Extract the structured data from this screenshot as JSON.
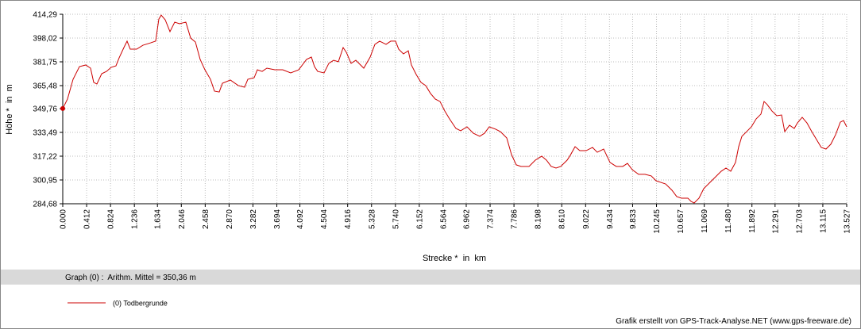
{
  "chart_data": {
    "type": "line",
    "y_label": "Höhe *  in  m",
    "x_label": "Strecke *  in  km",
    "info": "Graph (0) :  Arithm. Mittel = 350,36 m",
    "credit": "Grafik erstellt von GPS-Track-Analyse.NET (www.gps-freeware.de)",
    "grid": true,
    "xlim": [
      0,
      13.527
    ],
    "ylim": [
      284.68,
      414.29
    ],
    "yticks": [
      {
        "value": 284.68,
        "label": "284,68"
      },
      {
        "value": 300.95,
        "label": "300,95"
      },
      {
        "value": 317.22,
        "label": "317,22"
      },
      {
        "value": 333.49,
        "label": "333,49"
      },
      {
        "value": 349.76,
        "label": "349,76"
      },
      {
        "value": 365.48,
        "label": "365,48"
      },
      {
        "value": 381.75,
        "label": "381,75"
      },
      {
        "value": 398.02,
        "label": "398,02"
      },
      {
        "value": 414.29,
        "label": "414,29"
      }
    ],
    "xticks": [
      {
        "value": 0,
        "label": "0.000"
      },
      0.412,
      0.824,
      1.236,
      1.634,
      2.046,
      2.458,
      {
        "value": 2.87,
        "label": "2.870"
      },
      3.282,
      3.694,
      4.092,
      4.504,
      4.916,
      5.328,
      {
        "value": 5.74,
        "label": "5.740"
      },
      6.152,
      6.564,
      6.962,
      7.374,
      7.786,
      8.198,
      {
        "value": 8.61,
        "label": "8.610"
      },
      9.022,
      9.434,
      9.833,
      10.245,
      10.657,
      11.069,
      {
        "value": 11.48,
        "label": "11.480"
      },
      11.892,
      12.291,
      12.703,
      13.115,
      13.527
    ],
    "x": [
      0,
      0.082,
      0.178,
      0.288,
      0.397,
      0.48,
      0.534,
      0.589,
      0.672,
      0.754,
      0.836,
      0.918,
      0.973,
      1.055,
      1.11,
      1.165,
      1.275,
      1.384,
      1.521,
      1.603,
      1.658,
      1.699,
      1.768,
      1.85,
      1.932,
      2.015,
      2.124,
      2.207,
      2.289,
      2.371,
      2.453,
      2.549,
      2.618,
      2.7,
      2.755,
      2.892,
      3.029,
      3.138,
      3.193,
      3.303,
      3.358,
      3.44,
      3.522,
      3.659,
      3.796,
      3.933,
      4.07,
      4.207,
      4.29,
      4.344,
      4.399,
      4.509,
      4.591,
      4.673,
      4.756,
      4.838,
      4.893,
      4.975,
      5.057,
      5.194,
      5.304,
      5.386,
      5.468,
      5.578,
      5.66,
      5.742,
      5.797,
      5.879,
      5.962,
      6.016,
      6.099,
      6.181,
      6.263,
      6.346,
      6.428,
      6.51,
      6.592,
      6.674,
      6.784,
      6.866,
      6.976,
      7.085,
      7.195,
      7.277,
      7.359,
      7.469,
      7.551,
      7.661,
      7.743,
      7.825,
      7.908,
      8.045,
      8.154,
      8.264,
      8.346,
      8.428,
      8.511,
      8.593,
      8.703,
      8.757,
      8.84,
      8.922,
      9.031,
      9.141,
      9.223,
      9.333,
      9.443,
      9.552,
      9.662,
      9.744,
      9.826,
      9.936,
      10.046,
      10.155,
      10.238,
      10.32,
      10.402,
      10.512,
      10.594,
      10.676,
      10.786,
      10.841,
      10.895,
      10.978,
      11.06,
      11.169,
      11.252,
      11.361,
      11.444,
      11.526,
      11.608,
      11.663,
      11.718,
      11.8,
      11.882,
      11.964,
      12.047,
      12.101,
      12.156,
      12.238,
      12.321,
      12.403,
      12.458,
      12.54,
      12.622,
      12.677,
      12.759,
      12.841,
      12.924,
      13.006,
      13.088,
      13.17,
      13.253,
      13.335,
      13.417,
      13.472,
      13.527
    ],
    "series": [
      {
        "name": "(0) Todbergrunde",
        "color": "#cc0000",
        "values": [
          349.8,
          356.3,
          369.8,
          378.5,
          379.6,
          377.4,
          367.7,
          366.6,
          373.6,
          375.2,
          378.0,
          379.0,
          384.5,
          391.5,
          395.9,
          390.4,
          390.4,
          393.1,
          394.8,
          395.9,
          411.0,
          413.7,
          410.5,
          402.4,
          408.9,
          407.8,
          408.9,
          398.0,
          395.3,
          383.4,
          376.3,
          369.8,
          361.7,
          361.1,
          367.1,
          369.3,
          365.5,
          364.4,
          369.8,
          370.9,
          376.3,
          375.2,
          377.4,
          376.3,
          376.3,
          374.2,
          376.3,
          383.4,
          385.0,
          378.5,
          375.2,
          374.2,
          380.7,
          382.8,
          381.8,
          391.5,
          388.3,
          380.7,
          382.8,
          377.4,
          385.0,
          393.7,
          395.9,
          393.7,
          395.9,
          395.9,
          390.4,
          387.2,
          389.3,
          379.6,
          373.1,
          367.7,
          365.5,
          360.1,
          356.3,
          354.6,
          348.1,
          342.7,
          336.2,
          334.6,
          337.3,
          332.9,
          330.8,
          332.9,
          337.3,
          335.7,
          334.0,
          329.7,
          318.3,
          311.3,
          310.2,
          310.2,
          314.5,
          317.2,
          314.5,
          310.2,
          309.1,
          310.2,
          314.5,
          317.8,
          323.7,
          321.0,
          321.0,
          323.2,
          319.9,
          322.1,
          312.9,
          310.2,
          310.2,
          312.3,
          308.0,
          304.8,
          304.8,
          303.7,
          300.4,
          299.3,
          298.2,
          293.9,
          289.6,
          288.5,
          288.5,
          286.3,
          285.2,
          288.5,
          295.0,
          299.3,
          302.6,
          306.9,
          309.1,
          306.9,
          312.9,
          323.7,
          330.8,
          334.0,
          337.3,
          342.7,
          346.0,
          354.6,
          352.5,
          348.1,
          344.9,
          345.4,
          334.0,
          338.4,
          336.2,
          340.0,
          343.8,
          340.0,
          334.0,
          328.6,
          323.2,
          322.1,
          325.4,
          331.9,
          340.5,
          341.6,
          337.3
        ]
      }
    ]
  }
}
